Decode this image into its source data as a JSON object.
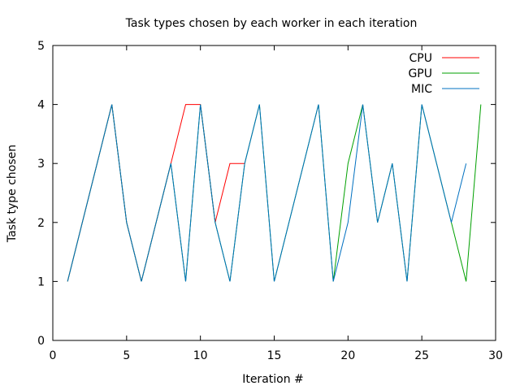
{
  "chart_data": {
    "type": "line",
    "title": "Task types chosen by each worker in each iteration",
    "xlabel": "Iteration #",
    "ylabel": "Task type chosen",
    "xlim": [
      0,
      30
    ],
    "ylim": [
      0,
      5
    ],
    "xticks": [
      0,
      5,
      10,
      15,
      20,
      25,
      30
    ],
    "yticks": [
      0,
      1,
      2,
      3,
      4,
      5
    ],
    "grid": false,
    "legend_position": "top-right",
    "series": [
      {
        "name": "CPU",
        "color": "#ff0000",
        "x": [
          1,
          2,
          3,
          4,
          5,
          6,
          7,
          8,
          9,
          10,
          11,
          12,
          13
        ],
        "y": [
          1,
          2,
          3,
          4,
          2,
          1,
          2,
          3,
          4,
          4,
          2,
          3,
          3
        ]
      },
      {
        "name": "GPU",
        "color": "#00a000",
        "x": [
          1,
          2,
          3,
          4,
          5,
          6,
          7,
          8,
          9,
          10,
          11,
          12,
          13,
          14,
          15,
          16,
          17,
          18,
          19,
          20,
          21,
          22,
          23,
          24,
          25,
          26,
          27,
          28,
          29
        ],
        "y": [
          1,
          2,
          3,
          4,
          2,
          1,
          2,
          3,
          1,
          4,
          2,
          1,
          3,
          4,
          1,
          2,
          3,
          4,
          1,
          3,
          4,
          2,
          3,
          1,
          4,
          3,
          2,
          1,
          4
        ]
      },
      {
        "name": "MIC",
        "color": "#0070c0",
        "x": [
          1,
          2,
          3,
          4,
          5,
          6,
          7,
          8,
          9,
          10,
          11,
          12,
          13,
          14,
          15,
          16,
          17,
          18,
          19,
          20,
          21,
          22,
          23,
          24,
          25,
          26,
          27,
          28
        ],
        "y": [
          1,
          2,
          3,
          4,
          2,
          1,
          2,
          3,
          1,
          4,
          2,
          1,
          3,
          4,
          1,
          2,
          3,
          4,
          1,
          2,
          4,
          2,
          3,
          1,
          4,
          3,
          2,
          3
        ]
      }
    ]
  }
}
